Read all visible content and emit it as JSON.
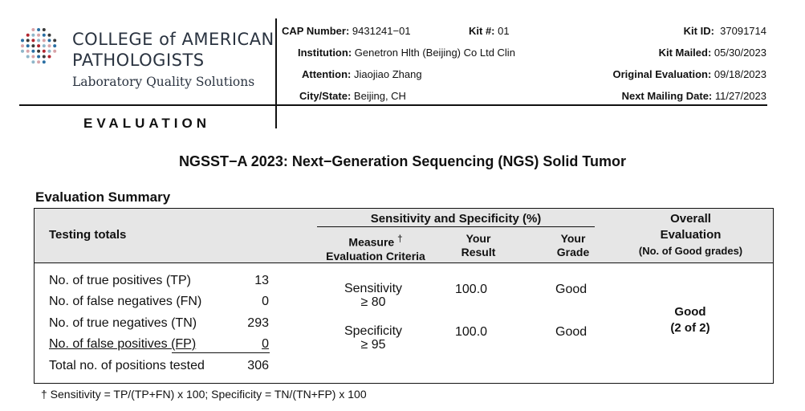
{
  "header": {
    "logo": {
      "line1": "COLLEGE of AMERICAN",
      "line2": "PATHOLOGISTS",
      "line3": "Laboratory Quality Solutions"
    },
    "section_title": "EVALUATION",
    "fields": {
      "cap_number_label": "CAP Number:",
      "cap_number": "9431241−01",
      "kit_num_label": "Kit #:",
      "kit_num": "01",
      "kit_id_label": "Kit ID:",
      "kit_id": "37091714",
      "institution_label": "Institution:",
      "institution": "Genetron Hlth (Beijing) Co Ltd Clin",
      "kit_mailed_label": "Kit Mailed:",
      "kit_mailed": "05/30/2023",
      "attention_label": "Attention:",
      "attention": "Jiaojiao Zhang",
      "original_eval_label": "Original Evaluation:",
      "original_eval": "09/18/2023",
      "city_state_label": "City/State:",
      "city_state": "Beijing, CH",
      "next_mailing_label": "Next Mailing Date:",
      "next_mailing": "11/27/2023"
    }
  },
  "title": "NGSST−A 2023: Next−Generation Sequencing (NGS) Solid Tumor",
  "summary": {
    "title": "Evaluation Summary",
    "headers": {
      "testing_totals": "Testing totals",
      "sens_spec": "Sensitivity and Specificity (%)",
      "measure_line1": "Measure",
      "dagger": "†",
      "measure_line2": "Evaluation Criteria",
      "your_result_1": "Your",
      "your_result_2": "Result",
      "your_grade_1": "Your",
      "your_grade_2": "Grade",
      "overall_1": "Overall",
      "overall_2": "Evaluation",
      "overall_3": "(No. of Good grades)"
    },
    "totals": [
      {
        "label": "No. of true positives (TP)",
        "value": "13"
      },
      {
        "label": "No. of false negatives (FN)",
        "value": "0"
      },
      {
        "label": "No. of true negatives (TN)",
        "value": "293"
      },
      {
        "label": "No. of false positives (FP)",
        "value": "0"
      },
      {
        "label": "Total no. of positions tested",
        "value": "306"
      }
    ],
    "measures": [
      {
        "name": "Sensitivity",
        "criteria": "≥ 80",
        "result": "100.0",
        "grade": "Good"
      },
      {
        "name": "Specificity",
        "criteria": "≥ 95",
        "result": "100.0",
        "grade": "Good"
      }
    ],
    "overall": {
      "grade": "Good",
      "count": "(2 of 2)"
    }
  },
  "footnote": "† Sensitivity = TP/(TP+FN) x 100; Specificity = TN/(TN+FP) x 100"
}
